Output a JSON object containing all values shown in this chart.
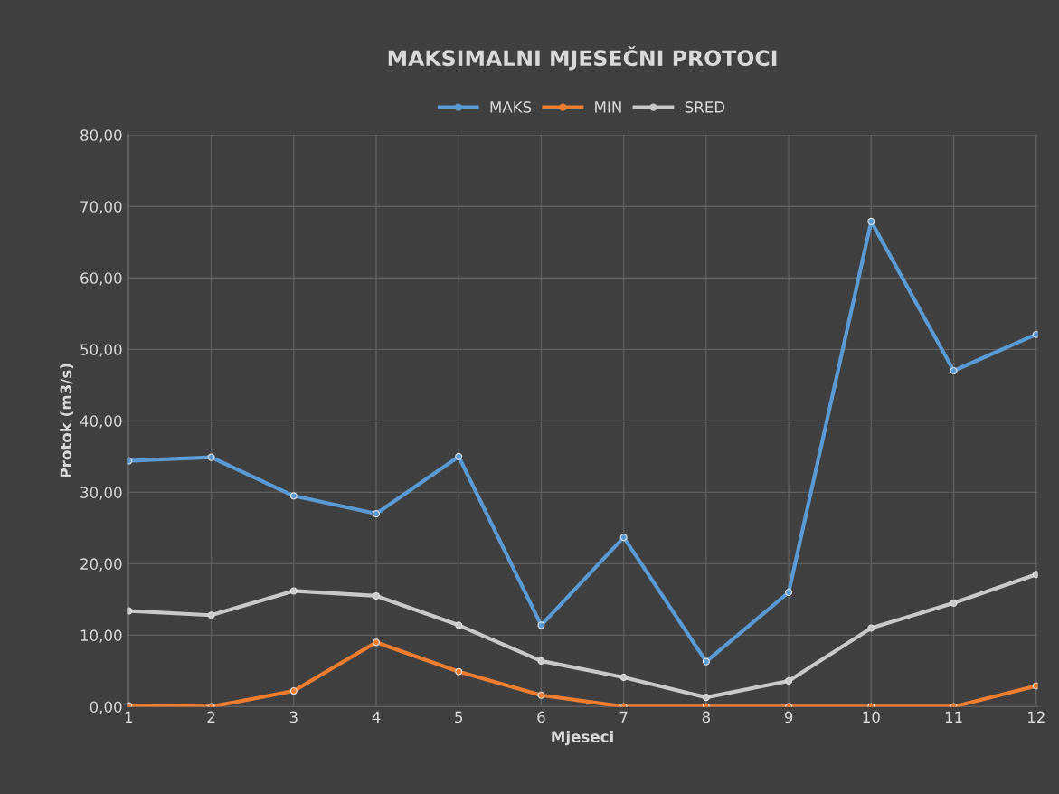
{
  "chart_data": {
    "type": "line",
    "title": "MAKSIMALNI MJESEČNI PROTOCI",
    "xlabel": "Mjeseci",
    "ylabel": "Protok (m3/s)",
    "categories": [
      "1",
      "2",
      "3",
      "4",
      "5",
      "6",
      "7",
      "8",
      "9",
      "10",
      "11",
      "12"
    ],
    "series": [
      {
        "name": "MAKS",
        "color": "#5b9bd5",
        "values": [
          34.4,
          34.9,
          29.5,
          27.0,
          35.0,
          11.4,
          23.7,
          6.3,
          16.0,
          67.9,
          47.0,
          52.1
        ]
      },
      {
        "name": "MIN",
        "color": "#ed7d31",
        "values": [
          0.1,
          0.0,
          2.2,
          9.0,
          4.9,
          1.6,
          0.0,
          0.0,
          0.0,
          0.0,
          0.0,
          2.9
        ]
      },
      {
        "name": "SRED",
        "color": "#c9c9c9",
        "values": [
          13.4,
          12.8,
          16.2,
          15.5,
          11.4,
          6.4,
          4.1,
          1.3,
          3.6,
          11.0,
          14.5,
          18.5
        ]
      }
    ],
    "ylim": [
      0,
      80
    ],
    "yticks": [
      {
        "value": 0,
        "label": "0,00"
      },
      {
        "value": 10,
        "label": "10,00"
      },
      {
        "value": 20,
        "label": "20,00"
      },
      {
        "value": 30,
        "label": "30,00"
      },
      {
        "value": 40,
        "label": "40,00"
      },
      {
        "value": 50,
        "label": "50,00"
      },
      {
        "value": 60,
        "label": "60,00"
      },
      {
        "value": 70,
        "label": "70,00"
      },
      {
        "value": 80,
        "label": "80,00"
      }
    ],
    "grid": true,
    "legend": "top",
    "marker": "circle",
    "line_style": "solid"
  }
}
